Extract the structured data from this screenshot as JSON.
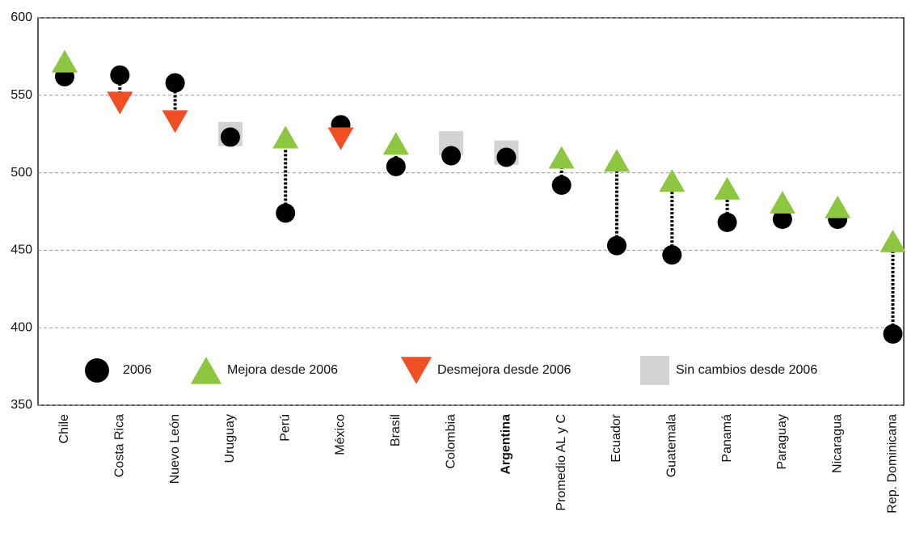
{
  "chart_data": {
    "type": "dot",
    "categories": [
      "Chile",
      "Costa Rica",
      "Nuevo León",
      "Uruguay",
      "Perú",
      "México",
      "Brasil",
      "Colombia",
      "Argentina",
      "Promedio AL y C",
      "Ecuador",
      "Guatemala",
      "Panamá",
      "Paraguay",
      "Nicaragua",
      "Rep. Dominicana"
    ],
    "highlight_index": 8,
    "series": [
      {
        "name": "2006",
        "color": "#000000",
        "marker": "circle",
        "values": [
          562,
          563,
          558,
          523,
          474,
          531,
          504,
          511,
          510,
          492,
          453,
          447,
          468,
          470,
          470,
          396
        ]
      },
      {
        "name": "Mejora desde 2006",
        "color": "#8dc63f",
        "marker": "triangle-up",
        "values": [
          572,
          null,
          null,
          null,
          523,
          null,
          519,
          null,
          null,
          510,
          508,
          495,
          490,
          481,
          478,
          456
        ]
      },
      {
        "name": "Desmejora desde 2006",
        "color": "#f04e23",
        "marker": "triangle-down",
        "values": [
          null,
          545,
          533,
          null,
          null,
          522,
          null,
          null,
          null,
          null,
          null,
          null,
          null,
          null,
          null,
          null
        ]
      },
      {
        "name": "Sin cambios desde 2006",
        "color": "#d3d3d3",
        "marker": "square",
        "values": [
          null,
          null,
          null,
          525,
          null,
          null,
          null,
          519,
          513,
          null,
          null,
          null,
          null,
          null,
          null,
          null
        ]
      }
    ],
    "ylim": [
      350,
      600
    ],
    "yticks": [
      350,
      400,
      450,
      500,
      550,
      600
    ],
    "grid": true
  }
}
